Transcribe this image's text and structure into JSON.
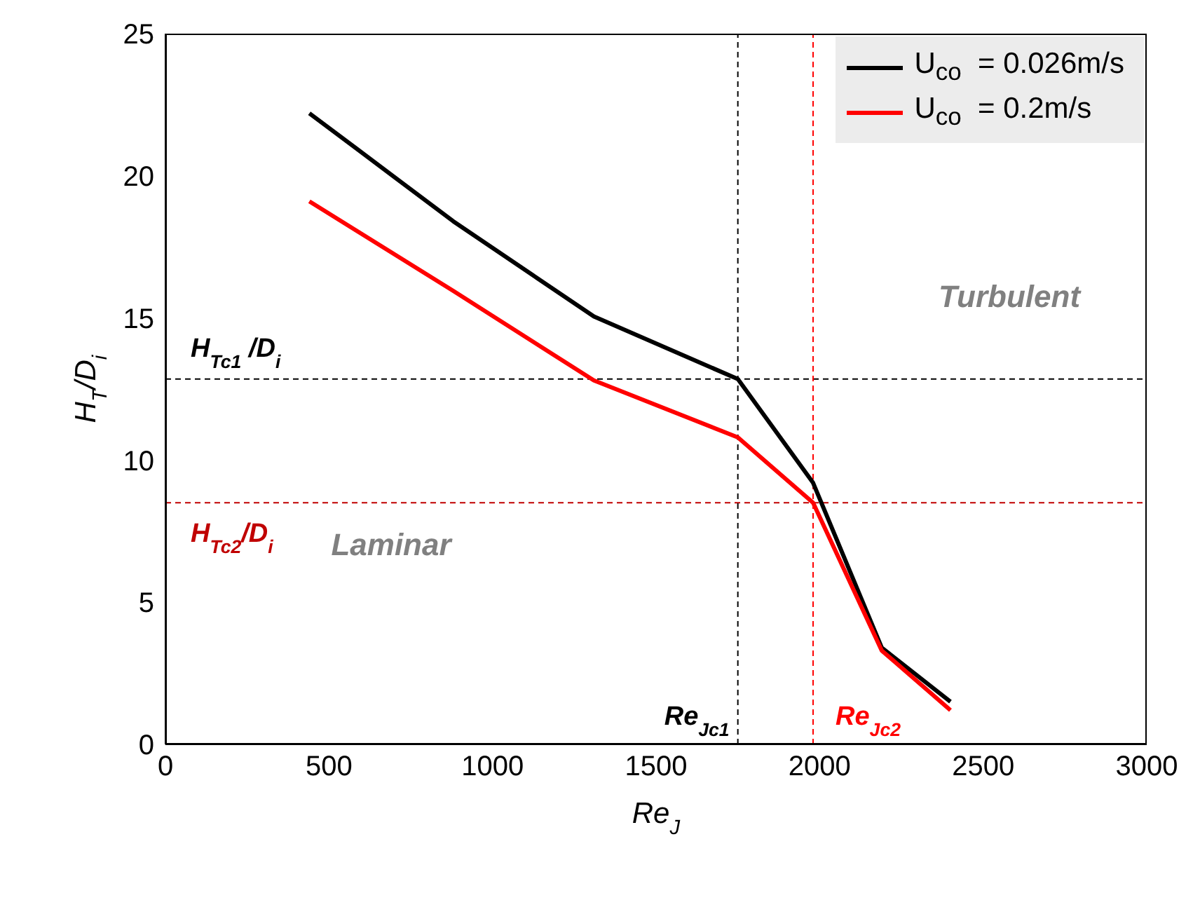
{
  "chart_data": {
    "type": "line",
    "xlabel": "Re$_{J}$",
    "ylabel": "H$_{T}$/D$_{i}$",
    "x": [
      440,
      880,
      1310,
      1750,
      1980,
      2190,
      2400
    ],
    "series": [
      {
        "name": "U$_{co}$  = 0.026m/s",
        "color": "#000000",
        "values": [
          22.2,
          18.4,
          15.05,
          12.85,
          9.2,
          3.4,
          1.5
        ]
      },
      {
        "name": "U$_{co}$  = 0.2m/s",
        "color": "#ff0000",
        "values": [
          19.1,
          15.95,
          12.8,
          10.8,
          8.5,
          3.3,
          1.2
        ]
      }
    ],
    "xlim": [
      0,
      3000
    ],
    "xticks": [
      0,
      500,
      1000,
      1500,
      2000,
      2500,
      3000
    ],
    "ylim": [
      0,
      25
    ],
    "yticks": [
      0,
      5,
      10,
      15,
      20,
      25
    ],
    "ref_lines": [
      {
        "axis": "y",
        "value": 12.85,
        "label": "H$_{Tc1}$ /D$_{i}$",
        "color": "#000000",
        "line_style": "dashed"
      },
      {
        "axis": "y",
        "value": 8.5,
        "label": "H$_{Tc2}$/D$_{i}$",
        "color": "#c00000",
        "line_style": "dashed"
      },
      {
        "axis": "x",
        "value": 1750,
        "label": "Re$_{Jc1}$",
        "color": "#000000",
        "line_style": "dashed"
      },
      {
        "axis": "x",
        "value": 1980,
        "label": "Re$_{Jc2}$",
        "color": "#ff0000",
        "line_style": "dashed"
      }
    ],
    "annotations": [
      "Turbulent",
      "Laminar"
    ],
    "legend": "top right",
    "grid": false
  }
}
